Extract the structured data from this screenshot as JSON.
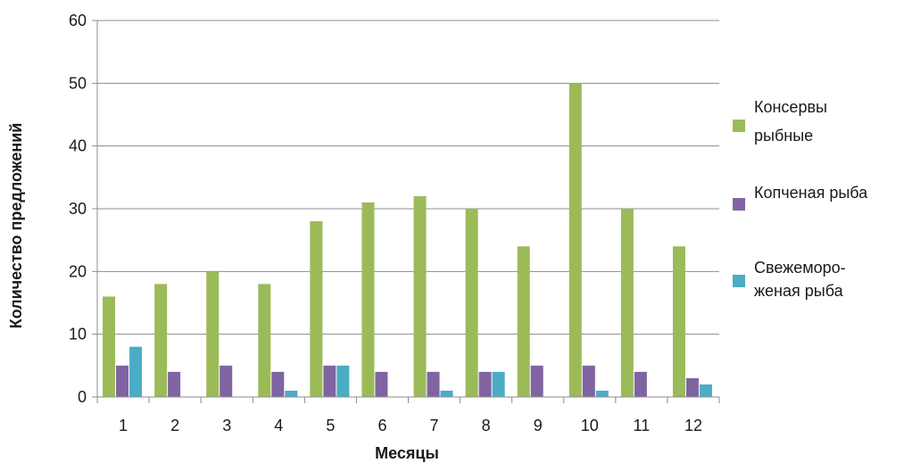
{
  "chart_data": {
    "type": "bar",
    "title": "",
    "xlabel": "Месяцы",
    "ylabel": "Количество предложений",
    "ylim": [
      0,
      60
    ],
    "yticks": [
      0,
      10,
      20,
      30,
      40,
      50,
      60
    ],
    "grid": true,
    "legend_position": "right",
    "categories": [
      "1",
      "2",
      "3",
      "4",
      "5",
      "6",
      "7",
      "8",
      "9",
      "10",
      "11",
      "12"
    ],
    "series": [
      {
        "name": "Консервы рыбные",
        "legend_lines": [
          "Консервы",
          "рыбные"
        ],
        "color": "#9bbb59",
        "values": [
          16,
          18,
          20,
          18,
          28,
          31,
          32,
          30,
          24,
          50,
          30,
          24
        ]
      },
      {
        "name": "Копченая рыба",
        "legend_lines": [
          "Копченая рыба"
        ],
        "color": "#8064a2",
        "values": [
          5,
          4,
          5,
          4,
          5,
          4,
          4,
          4,
          5,
          5,
          4,
          3
        ]
      },
      {
        "name": "Свежемороженая рыба",
        "legend_lines": [
          "Свежеморо-",
          "женая рыба"
        ],
        "color": "#4bacc6",
        "values": [
          8,
          0,
          0,
          1,
          5,
          0,
          1,
          4,
          0,
          1,
          0,
          2
        ]
      }
    ]
  }
}
